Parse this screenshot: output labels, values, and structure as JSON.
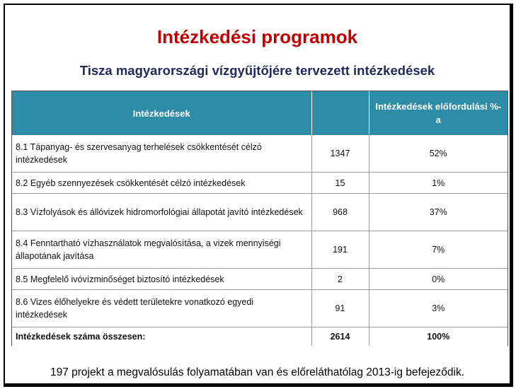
{
  "slide": {
    "title": "Intézkedési programok",
    "subtitle": "Tisza magyarországi vízgyűjtőjére tervezett intézkedések",
    "footer": "197 projekt a megvalósulás folyamatában van és előreláthatólag 2013-ig befejeződik."
  },
  "table": {
    "headers": [
      "Intézkedések",
      "",
      "Intézkedések előfordulási %-a"
    ],
    "header_color": "#2e8ca6",
    "rows": [
      {
        "label": "8.1 Tápanyag- és szervesanyag terhelések csökkentését célzó intézkedések",
        "count": "1347",
        "percent": "52%"
      },
      {
        "label": "8.2 Egyéb szennyezések csökkentését célzó intézkedések",
        "count": "15",
        "percent": "1%"
      },
      {
        "label": "8.3 Vízfolyások és állóvizek hidromorfológiai állapotát javító intézkedések",
        "count": "968",
        "percent": "37%"
      },
      {
        "label": "8.4 Fenntartható vízhasználatok megvalósítása, a vizek mennyiségi állapotának javítása",
        "count": "191",
        "percent": "7%"
      },
      {
        "label": "8.5 Megfelelő ivóvízminőséget biztosító intézkedések",
        "count": "2",
        "percent": "0%"
      },
      {
        "label": "8.6 Vizes élőhelyekre és védett területekre vonatkozó egyedi intézkedések",
        "count": "91",
        "percent": "3%"
      }
    ],
    "total": {
      "label": "Intézkedések száma összesen:",
      "count": "2614",
      "percent": "100%"
    }
  }
}
